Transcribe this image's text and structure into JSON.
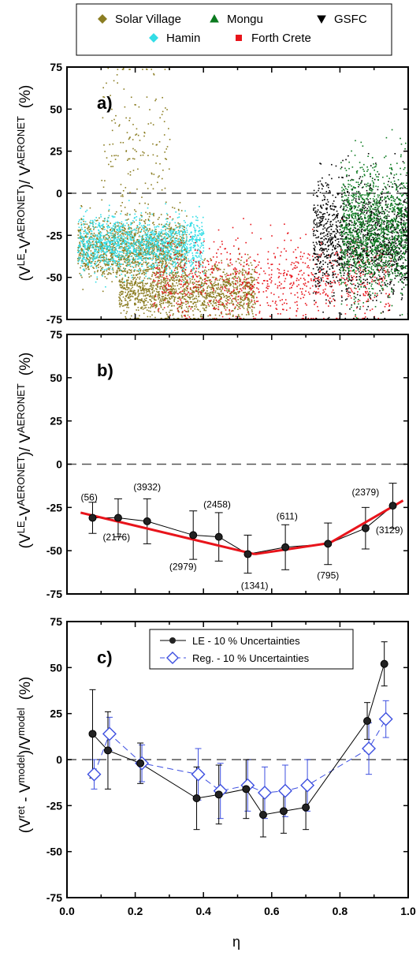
{
  "chart_data": [
    {
      "type": "scatter",
      "panel_label": "a)",
      "ylabel": "(V LE-V AERONET)/ V AERONET (%)",
      "ylabel_parts": {
        "open": "(V",
        "sup1": "LE",
        "mid": "-V",
        "sup2": "AERONET",
        "mid2": ")/ V",
        "sup3": "AERONET",
        "unit": "(%)"
      },
      "xlim": [
        0.0,
        1.0
      ],
      "ylim": [
        -75,
        75
      ],
      "yticks": [
        "75",
        "50",
        "25",
        "0",
        "-25",
        "-50",
        "-75"
      ],
      "reference_line": 0,
      "legend": {
        "placement": "top, outside",
        "entries": [
          {
            "name": "Solar Village",
            "color": "#8b7d22",
            "marker": "diamond"
          },
          {
            "name": "Mongu",
            "color": "#0b7a1f",
            "marker": "triangle-up"
          },
          {
            "name": "GSFC",
            "color": "#000000",
            "marker": "triangle-down"
          },
          {
            "name": "Hamin",
            "color": "#33dde6",
            "marker": "diamond"
          },
          {
            "name": "Forth Crete",
            "color": "#e8141b",
            "marker": "square"
          }
        ]
      },
      "clusters": [
        {
          "series": "Solar Village",
          "x_range": [
            0.03,
            0.35
          ],
          "y_center": -33,
          "y_spread": 9,
          "density": "high"
        },
        {
          "series": "Solar Village",
          "x_range": [
            0.15,
            0.55
          ],
          "y_center": -58,
          "y_spread": 8,
          "density": "high"
        },
        {
          "series": "Solar Village",
          "x_range": [
            0.1,
            0.3
          ],
          "y_center": 25,
          "y_spread": 30,
          "density": "sparse"
        },
        {
          "series": "Hamin",
          "x_range": [
            0.03,
            0.4
          ],
          "y_center": -30,
          "y_spread": 8,
          "density": "high"
        },
        {
          "series": "Forth Crete",
          "x_range": [
            0.25,
            0.95
          ],
          "y_center": -52,
          "y_spread": 12,
          "density": "medium"
        },
        {
          "series": "GSFC",
          "x_range": [
            0.72,
            1.0
          ],
          "y_center": -28,
          "y_spread": 18,
          "density": "high"
        },
        {
          "series": "Mongu",
          "x_range": [
            0.8,
            1.0
          ],
          "y_center": -22,
          "y_spread": 18,
          "density": "high"
        }
      ]
    },
    {
      "type": "line",
      "panel_label": "b)",
      "ylabel": "(V LE-V AERONET)/ V AERONET (%)",
      "ylim": [
        -75,
        75
      ],
      "yticks": [
        "75",
        "50",
        "25",
        "0",
        "-25",
        "-50",
        "-75"
      ],
      "reference_line": 0,
      "series": [
        {
          "name": "mean with error bars",
          "color": "#000000",
          "x": [
            0.075,
            0.15,
            0.235,
            0.37,
            0.445,
            0.53,
            0.64,
            0.765,
            0.875,
            0.955
          ],
          "y": [
            -31,
            -31,
            -33,
            -41,
            -42,
            -52,
            -48,
            -46,
            -37,
            -24
          ],
          "err": [
            9,
            11,
            13,
            14,
            14,
            11,
            13,
            12,
            12,
            13
          ]
        },
        {
          "name": "linear fits",
          "color": "#e8141b",
          "segments": [
            {
              "x": [
                0.04,
                0.55
              ],
              "y": [
                -28,
                -52
              ]
            },
            {
              "x": [
                0.55,
                0.755
              ],
              "y": [
                -52,
                -46
              ]
            },
            {
              "x": [
                0.775,
                0.985
              ],
              "y": [
                -45,
                -21
              ]
            }
          ]
        }
      ],
      "data_labels": [
        {
          "text": "(56)",
          "x": 0.065,
          "y": -21
        },
        {
          "text": "(2176)",
          "x": 0.145,
          "y": -44
        },
        {
          "text": "(3932)",
          "x": 0.235,
          "y": -15
        },
        {
          "text": "(2979)",
          "x": 0.34,
          "y": -61
        },
        {
          "text": "(2458)",
          "x": 0.44,
          "y": -25
        },
        {
          "text": "(1341)",
          "x": 0.55,
          "y": -72
        },
        {
          "text": "(611)",
          "x": 0.645,
          "y": -32
        },
        {
          "text": "(795)",
          "x": 0.765,
          "y": -66
        },
        {
          "text": "(2379)",
          "x": 0.875,
          "y": -18
        },
        {
          "text": "(3129)",
          "x": 0.945,
          "y": -40
        }
      ]
    },
    {
      "type": "line",
      "panel_label": "c)",
      "ylabel": "(Vret - Vmodel)/Vmodel (%)",
      "ylabel_parts": {
        "open": "(V",
        "sup1": "ret",
        "mid": " - V",
        "sup2": "model",
        "mid2": ")/V",
        "sup3": "model",
        "unit": "(%)"
      },
      "xlabel": "η",
      "xlim": [
        0.0,
        1.0
      ],
      "ylim": [
        -75,
        75
      ],
      "xticks": [
        "0.0",
        "0.2",
        "0.4",
        "0.6",
        "0.8",
        "1.0"
      ],
      "yticks": [
        "75",
        "50",
        "25",
        "0",
        "-25",
        "-50",
        "-75"
      ],
      "reference_line": 0,
      "legend": {
        "placement": "top-center",
        "entries": [
          {
            "name": "LE - 10 % Uncertainties",
            "color": "#000000",
            "marker": "filled-circle",
            "line": "solid"
          },
          {
            "name": "Reg. - 10 %  Uncertainties",
            "color": "#3d4fe0",
            "marker": "open-diamond",
            "line": "dashed"
          }
        ]
      },
      "series": [
        {
          "name": "LE - 10 % Uncertainties",
          "x": [
            0.075,
            0.12,
            0.215,
            0.38,
            0.445,
            0.525,
            0.575,
            0.635,
            0.7,
            0.88,
            0.93
          ],
          "y": [
            14,
            5,
            -2,
            -21,
            -19,
            -16,
            -30,
            -28,
            -26,
            21,
            52
          ],
          "err": [
            24,
            21,
            11,
            17,
            16,
            16,
            12,
            12,
            12,
            10,
            12
          ]
        },
        {
          "name": "Reg. - 10 %  Uncertainties",
          "x": [
            0.075,
            0.12,
            0.215,
            0.38,
            0.445,
            0.525,
            0.575,
            0.635,
            0.7,
            0.88,
            0.93
          ],
          "y": [
            -8,
            14,
            -2,
            -8,
            -17,
            -14,
            -18,
            -17,
            -14,
            6,
            22
          ],
          "err": [
            8,
            9,
            10,
            14,
            15,
            14,
            14,
            14,
            14,
            14,
            10
          ]
        }
      ]
    }
  ]
}
